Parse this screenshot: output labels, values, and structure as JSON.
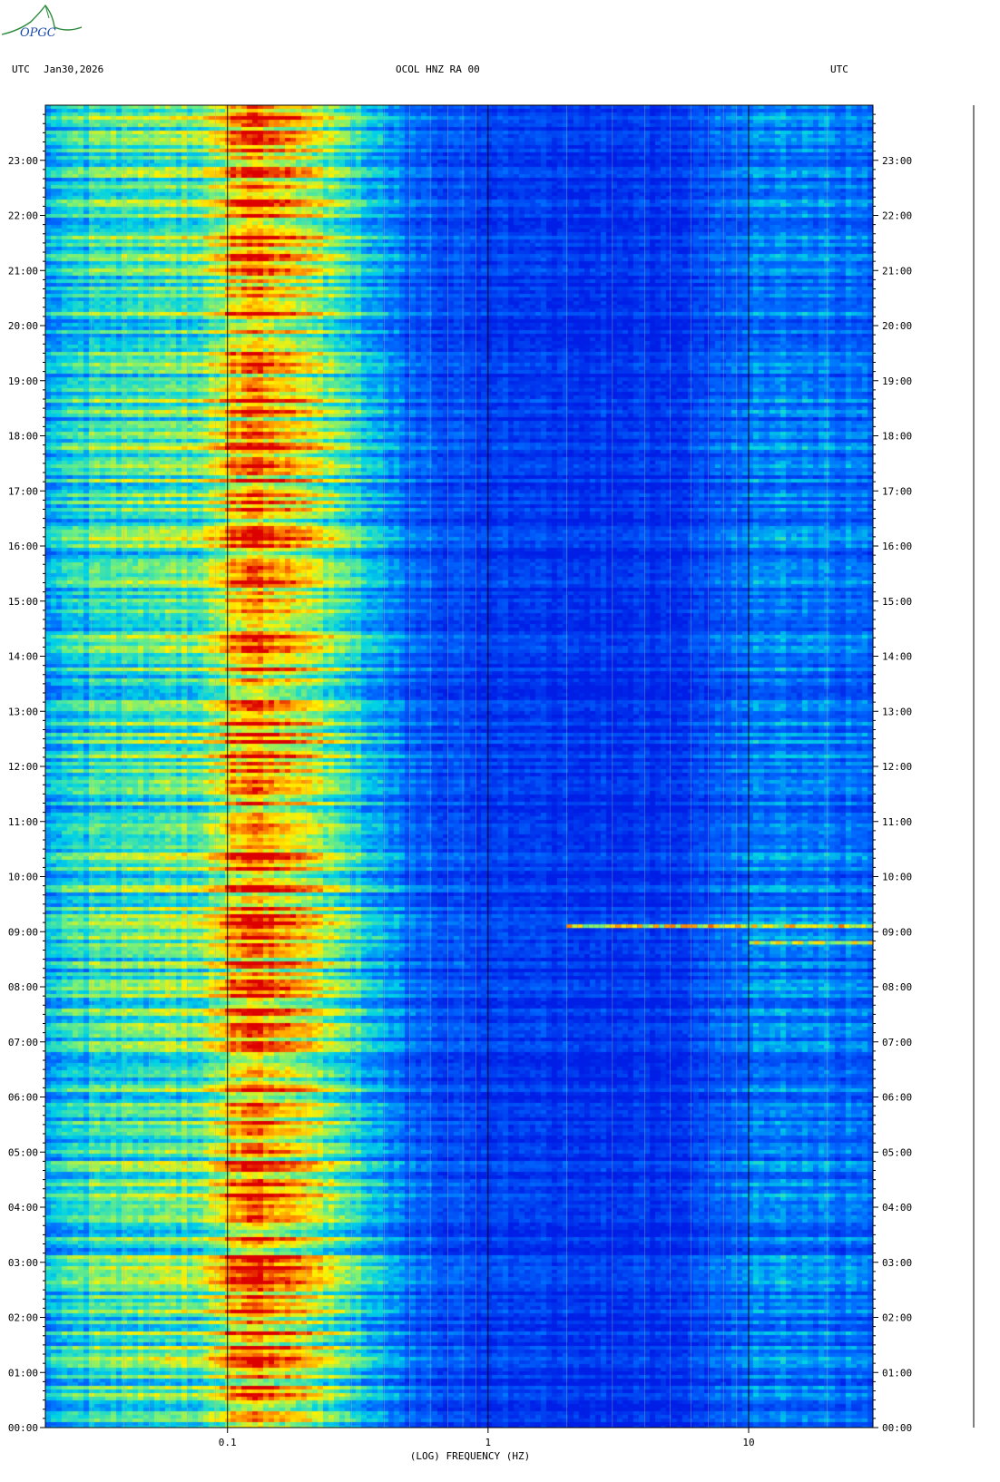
{
  "header": {
    "left_tz": "UTC",
    "date": "Jan30,2026",
    "station": "OCOL HNZ RA 00",
    "right_tz": "UTC"
  },
  "logo": {
    "text": "OPGC"
  },
  "colors": {
    "background": "#0033ff",
    "low": "#00ccee",
    "mid": "#ffee00",
    "high": "#ee2200"
  },
  "chart_data": {
    "type": "heatmap",
    "xlabel": "(LOG) FREQUENCY (HZ)",
    "x_scale": "log",
    "xlim": [
      0.02,
      30
    ],
    "x_tick_labels": [
      "0.1",
      "1",
      "10"
    ],
    "x_ticks": [
      0.1,
      1,
      10
    ],
    "y_scale": "time (hours UTC)",
    "ylim": [
      0,
      24
    ],
    "y_ticks": [
      0,
      1,
      2,
      3,
      4,
      5,
      6,
      7,
      8,
      9,
      10,
      11,
      12,
      13,
      14,
      15,
      16,
      17,
      18,
      19,
      20,
      21,
      22,
      23
    ],
    "y_tick_labels": [
      "00:00",
      "01:00",
      "02:00",
      "03:00",
      "04:00",
      "05:00",
      "06:00",
      "07:00",
      "08:00",
      "09:00",
      "10:00",
      "11:00",
      "12:00",
      "13:00",
      "14:00",
      "15:00",
      "16:00",
      "17:00",
      "18:00",
      "19:00",
      "20:00",
      "21:00",
      "22:00",
      "23:00"
    ],
    "intensity_profile": [
      {
        "freq": 0.02,
        "level": 0.35
      },
      {
        "freq": 0.03,
        "level": 0.45
      },
      {
        "freq": 0.05,
        "level": 0.5
      },
      {
        "freq": 0.08,
        "level": 0.55
      },
      {
        "freq": 0.12,
        "level": 0.85
      },
      {
        "freq": 0.18,
        "level": 0.75
      },
      {
        "freq": 0.3,
        "level": 0.45
      },
      {
        "freq": 0.5,
        "level": 0.2
      },
      {
        "freq": 1,
        "level": 0.1
      },
      {
        "freq": 5,
        "level": 0.05
      },
      {
        "freq": 13,
        "level": 0.3
      },
      {
        "freq": 30,
        "level": 0.2
      }
    ],
    "events": [
      {
        "time": 9.1,
        "freq_min": 2,
        "freq_max": 30,
        "level": 0.9
      },
      {
        "time": 8.8,
        "freq_min": 10,
        "freq_max": 30,
        "level": 0.8
      }
    ]
  }
}
